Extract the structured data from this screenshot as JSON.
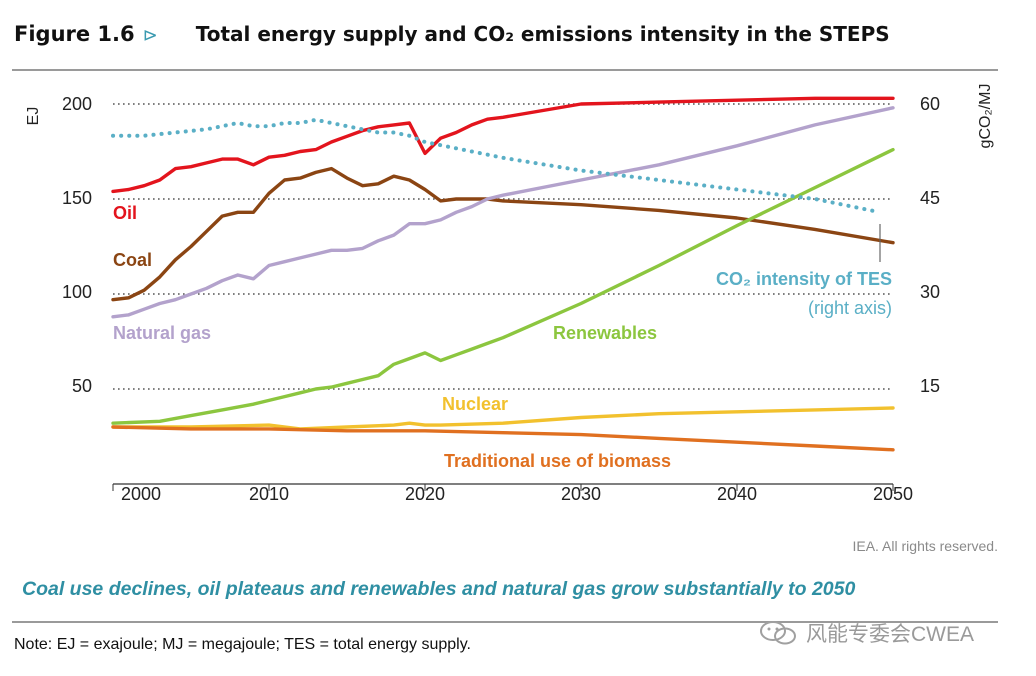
{
  "figure": {
    "number": "Figure 1.6",
    "arrow": "⊳",
    "title": "Total energy supply and CO₂ emissions intensity in the STEPS"
  },
  "chart_data": {
    "type": "line",
    "title": "Total energy supply and CO₂ emissions intensity in the STEPS",
    "xlabel": "",
    "ylabel": "EJ",
    "ylabel_right": "gCO₂/MJ",
    "xlim": [
      2000,
      2050
    ],
    "ylim": [
      0,
      200
    ],
    "ylim_right": [
      0,
      60
    ],
    "x_ticks": [
      "2000",
      "2010",
      "2020",
      "2030",
      "2040",
      "2050"
    ],
    "y_ticks": [
      "200",
      "150",
      "100",
      "50"
    ],
    "y_ticks_right": [
      "60",
      "45",
      "30",
      "15"
    ],
    "grid": "dotted horizontal at 50, 100, 150, 200",
    "series": [
      {
        "name": "Oil",
        "label": "Oil",
        "color": "#e3141d",
        "axis": "left",
        "x": [
          2000,
          2001,
          2002,
          2003,
          2004,
          2005,
          2006,
          2007,
          2008,
          2009,
          2010,
          2011,
          2012,
          2013,
          2014,
          2015,
          2016,
          2017,
          2018,
          2019,
          2020,
          2021,
          2022,
          2023,
          2024,
          2025,
          2030,
          2035,
          2040,
          2045,
          2050
        ],
        "y": [
          154,
          155,
          157,
          160,
          166,
          167,
          169,
          171,
          171,
          168,
          172,
          173,
          175,
          176,
          180,
          183,
          186,
          188,
          189,
          190,
          174,
          182,
          185,
          189,
          192,
          193,
          200,
          201,
          202,
          203,
          203
        ]
      },
      {
        "name": "Coal",
        "label": "Coal",
        "color": "#8b4513",
        "axis": "left",
        "x": [
          2000,
          2001,
          2002,
          2003,
          2004,
          2005,
          2006,
          2007,
          2008,
          2009,
          2010,
          2011,
          2012,
          2013,
          2014,
          2015,
          2016,
          2017,
          2018,
          2019,
          2020,
          2021,
          2022,
          2023,
          2024,
          2025,
          2030,
          2035,
          2040,
          2045,
          2050
        ],
        "y": [
          97,
          98,
          102,
          109,
          118,
          125,
          133,
          141,
          143,
          143,
          153,
          160,
          161,
          164,
          166,
          161,
          157,
          158,
          162,
          160,
          155,
          149,
          150,
          150,
          150,
          149,
          147,
          144,
          140,
          134,
          127
        ]
      },
      {
        "name": "Natural gas",
        "label": "Natural gas",
        "color": "#b3a2cc",
        "axis": "left",
        "x": [
          2000,
          2001,
          2002,
          2003,
          2004,
          2005,
          2006,
          2007,
          2008,
          2009,
          2010,
          2011,
          2012,
          2013,
          2014,
          2015,
          2016,
          2017,
          2018,
          2019,
          2020,
          2021,
          2022,
          2023,
          2024,
          2025,
          2030,
          2035,
          2040,
          2045,
          2050
        ],
        "y": [
          88,
          89,
          92,
          95,
          97,
          100,
          103,
          107,
          110,
          108,
          115,
          117,
          119,
          121,
          123,
          123,
          124,
          128,
          131,
          137,
          137,
          139,
          143,
          146,
          150,
          152,
          160,
          168,
          178,
          189,
          198
        ]
      },
      {
        "name": "Renewables",
        "label": "Renewables",
        "color": "#8cc63f",
        "axis": "left",
        "x": [
          2000,
          2003,
          2005,
          2007,
          2009,
          2010,
          2011,
          2012,
          2013,
          2014,
          2015,
          2016,
          2017,
          2018,
          2019,
          2020,
          2021,
          2022,
          2023,
          2024,
          2025,
          2030,
          2035,
          2040,
          2045,
          2050
        ],
        "y": [
          32,
          33,
          36,
          39,
          42,
          44,
          46,
          48,
          50,
          51,
          53,
          55,
          57,
          63,
          66,
          69,
          65,
          68,
          71,
          74,
          77,
          95,
          115,
          136,
          156,
          176
        ]
      },
      {
        "name": "Nuclear",
        "label": "Nuclear",
        "color": "#f2c12e",
        "axis": "left",
        "x": [
          2000,
          2005,
          2010,
          2012,
          2015,
          2018,
          2019,
          2020,
          2021,
          2025,
          2030,
          2035,
          2040,
          2045,
          2050
        ],
        "y": [
          30,
          30,
          31,
          29,
          30,
          31,
          32,
          31,
          31,
          32,
          35,
          37,
          38,
          39,
          40
        ]
      },
      {
        "name": "Traditional use of biomass",
        "label": "Traditional use of biomass",
        "color": "#e07020",
        "axis": "left",
        "x": [
          2000,
          2005,
          2010,
          2015,
          2020,
          2025,
          2030,
          2035,
          2040,
          2045,
          2050
        ],
        "y": [
          30,
          29,
          29,
          28,
          28,
          27,
          26,
          24,
          22,
          20,
          18
        ]
      },
      {
        "name": "CO₂ intensity of TES",
        "label": "CO₂ intensity of TES",
        "sublabel": "(right axis)",
        "color": "#5aafc6",
        "axis": "right",
        "style": "dotted",
        "x": [
          2000,
          2002,
          2004,
          2006,
          2008,
          2009,
          2010,
          2011,
          2012,
          2013,
          2014,
          2015,
          2016,
          2017,
          2018,
          2019,
          2020,
          2025,
          2030,
          2035,
          2040,
          2045,
          2049
        ],
        "y": [
          55,
          55,
          55.5,
          56,
          57,
          56.5,
          56.5,
          57,
          57,
          57.5,
          57,
          56.5,
          56,
          55.5,
          55.5,
          55,
          54,
          51.5,
          49.5,
          48,
          46.5,
          45,
          43
        ]
      }
    ]
  },
  "credit": "IEA. All rights reserved.",
  "caption": "Coal use declines, oil plateaus and renewables and natural gas grow substantially to 2050",
  "note": "Note: EJ = exajoule; MJ = megajoule; TES = total energy supply.",
  "watermark": "风能专委会CWEA"
}
